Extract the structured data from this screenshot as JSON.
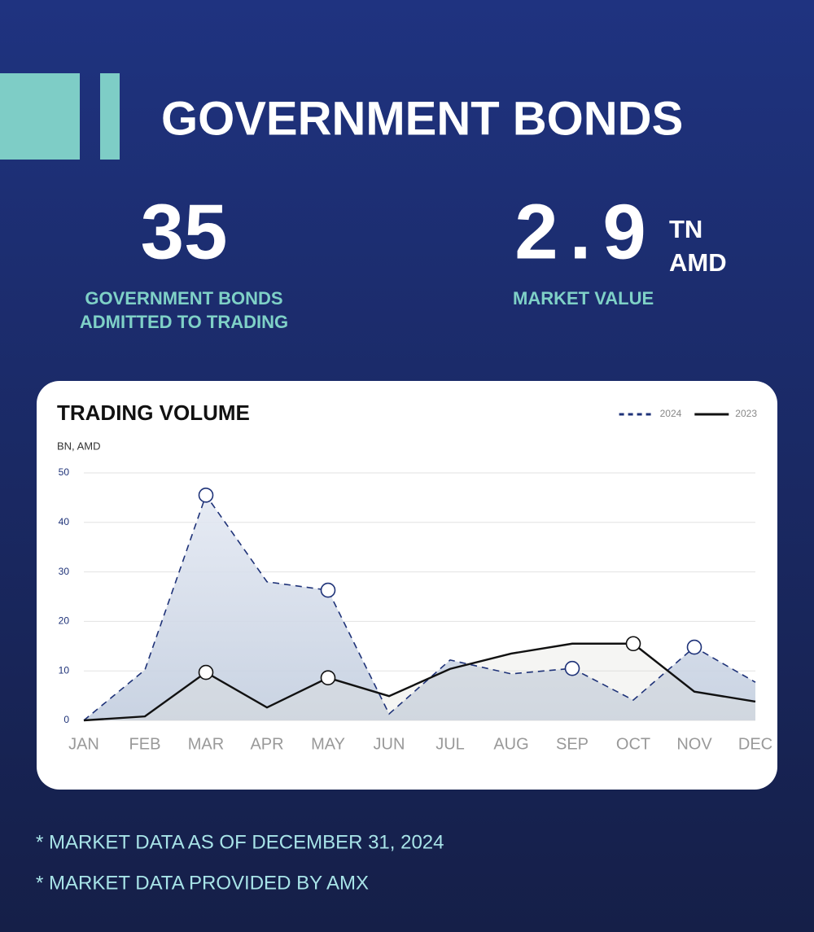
{
  "header": {
    "title": "GOVERNMENT BONDS"
  },
  "stats": [
    {
      "value": 35,
      "label_lines": [
        "GOVERNMENT BONDS",
        "ADMITTED TO TRADING"
      ]
    },
    {
      "value": 2.9,
      "unit_lines": [
        "TN",
        "AMD"
      ],
      "label": "MARKET VALUE"
    }
  ],
  "chart_data": {
    "type": "line",
    "title": "TRADING VOLUME",
    "y_label": "BN, AMD",
    "categories": [
      "JAN",
      "FEB",
      "MAR",
      "APR",
      "MAY",
      "JUN",
      "JUL",
      "AUG",
      "SEP",
      "OCT",
      "NOV",
      "DEC"
    ],
    "series": [
      {
        "name": "2024",
        "color": "#1e3278",
        "style": "dashed",
        "values": [
          0,
          10.2,
          45.5,
          28,
          26.3,
          1.3,
          12.2,
          9.4,
          10.5,
          4.1,
          14.8,
          7.7
        ]
      },
      {
        "name": "2023",
        "color": "#111111",
        "style": "solid",
        "values": [
          0,
          0.8,
          9.7,
          2.6,
          8.6,
          4.9,
          10.4,
          13.5,
          15.5,
          15.5,
          5.8,
          3.8
        ]
      }
    ],
    "ylim": [
      0,
      50
    ],
    "yticks": [
      0,
      10,
      20,
      30,
      40,
      50
    ],
    "grid": true,
    "legend": "top-right"
  },
  "footnotes": [
    "* MARKET DATA AS OF DECEMBER 31, 2024",
    "* MARKET DATA PROVIDED BY AMX"
  ]
}
